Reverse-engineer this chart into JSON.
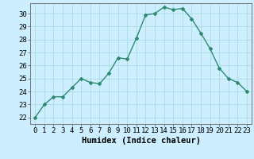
{
  "x": [
    0,
    1,
    2,
    3,
    4,
    5,
    6,
    7,
    8,
    9,
    10,
    11,
    12,
    13,
    14,
    15,
    16,
    17,
    18,
    19,
    20,
    21,
    22,
    23
  ],
  "y": [
    22,
    23,
    23.6,
    23.6,
    24.3,
    25.0,
    24.7,
    24.6,
    25.4,
    26.6,
    26.5,
    28.1,
    29.9,
    30.0,
    30.5,
    30.3,
    30.4,
    29.6,
    28.5,
    27.3,
    25.8,
    25.0,
    24.7,
    24.0
  ],
  "line_color": "#2e8b72",
  "marker": "D",
  "marker_size": 2.0,
  "bg_color": "#cceeff",
  "grid_color": "#aadddd",
  "xlabel": "Humidex (Indice chaleur)",
  "xlim": [
    -0.5,
    23.5
  ],
  "ylim": [
    21.5,
    30.8
  ],
  "yticks": [
    22,
    23,
    24,
    25,
    26,
    27,
    28,
    29,
    30
  ],
  "xticks": [
    0,
    1,
    2,
    3,
    4,
    5,
    6,
    7,
    8,
    9,
    10,
    11,
    12,
    13,
    14,
    15,
    16,
    17,
    18,
    19,
    20,
    21,
    22,
    23
  ],
  "tick_fontsize": 6.5,
  "label_fontsize": 7.5,
  "line_width": 1.0
}
